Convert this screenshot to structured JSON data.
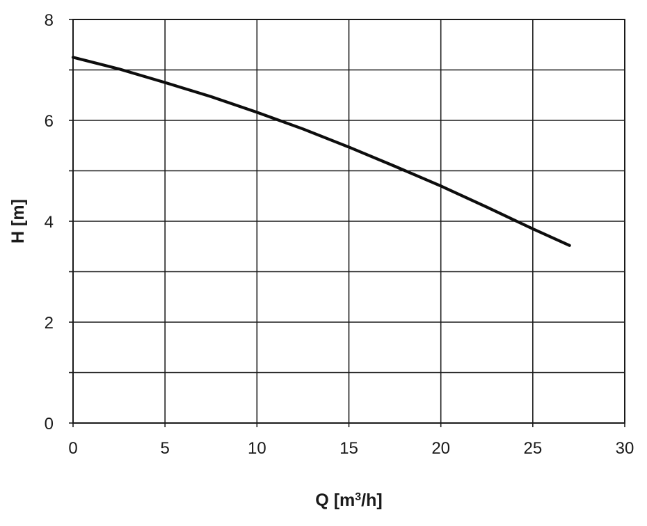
{
  "chart_data": {
    "type": "line",
    "title": "",
    "xlabel": {
      "prefix": "Q [m",
      "superscript": "3",
      "suffix": "/h]"
    },
    "ylabel": "H [m]",
    "xlim": [
      0,
      30
    ],
    "ylim": [
      0,
      8
    ],
    "xticks": [
      0,
      5,
      10,
      15,
      20,
      25,
      30
    ],
    "yticks_labeled": [
      0,
      2,
      4,
      6,
      8
    ],
    "ygrid": [
      0,
      1,
      2,
      3,
      4,
      5,
      6,
      7,
      8
    ],
    "grid": true,
    "legend": "none",
    "line_color": "#0d0d0d",
    "series": [
      {
        "x": [
          0,
          2.5,
          5,
          7.5,
          10,
          12.5,
          15,
          17.5,
          20,
          22.5,
          25,
          27
        ],
        "y": [
          7.25,
          7.02,
          6.75,
          6.47,
          6.16,
          5.83,
          5.47,
          5.09,
          4.7,
          4.28,
          3.85,
          3.52
        ]
      }
    ]
  }
}
